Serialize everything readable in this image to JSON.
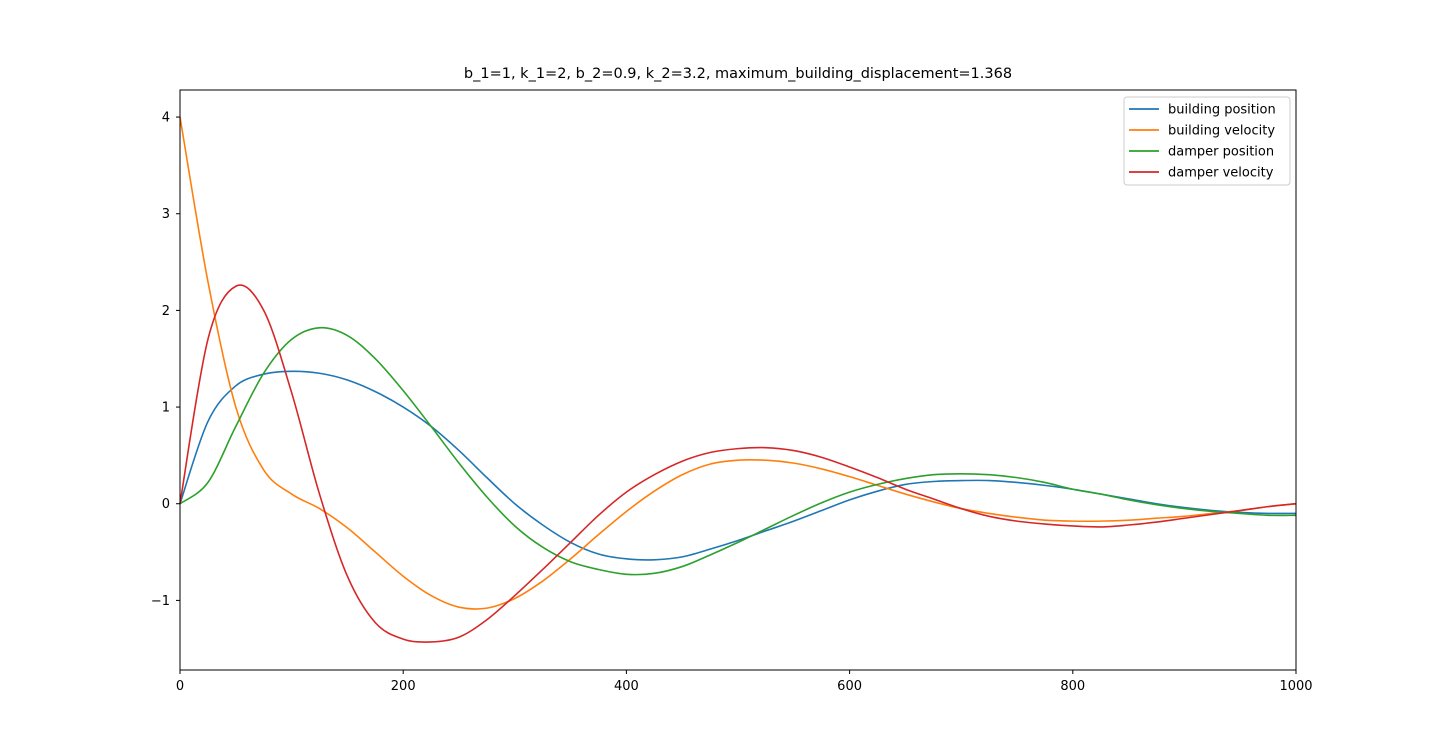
{
  "chart_data": {
    "type": "line",
    "title": "b_1=1, k_1=2, b_2=0.9, k_2=3.2, maximum_building_displacement=1.368",
    "xlabel": "",
    "ylabel": "",
    "xlim": [
      0,
      1000
    ],
    "ylim": [
      -1.72,
      4.28
    ],
    "x_ticks": [
      0,
      200,
      400,
      600,
      800,
      1000
    ],
    "x_tick_labels": [
      "0",
      "200",
      "400",
      "600",
      "800",
      "1000"
    ],
    "y_ticks": [
      -1,
      0,
      1,
      2,
      3,
      4
    ],
    "y_tick_labels": [
      "−1",
      "0",
      "1",
      "2",
      "3",
      "4"
    ],
    "grid": false,
    "legend_position": "top-right",
    "x": [
      0,
      25,
      50,
      75,
      100,
      125,
      150,
      175,
      200,
      225,
      250,
      275,
      300,
      325,
      350,
      375,
      400,
      425,
      450,
      475,
      500,
      525,
      550,
      575,
      600,
      625,
      650,
      675,
      700,
      725,
      750,
      775,
      800,
      825,
      850,
      875,
      900,
      925,
      950,
      975,
      1000
    ],
    "series": [
      {
        "name": "building position",
        "color": "#1f77b4",
        "values": [
          0,
          0.85,
          1.22,
          1.34,
          1.37,
          1.35,
          1.28,
          1.16,
          1.0,
          0.8,
          0.55,
          0.27,
          0.0,
          -0.22,
          -0.4,
          -0.52,
          -0.57,
          -0.58,
          -0.55,
          -0.47,
          -0.38,
          -0.28,
          -0.18,
          -0.07,
          0.04,
          0.13,
          0.2,
          0.23,
          0.24,
          0.24,
          0.22,
          0.19,
          0.15,
          0.1,
          0.05,
          0.0,
          -0.04,
          -0.07,
          -0.09,
          -0.1,
          -0.1
        ]
      },
      {
        "name": "building velocity",
        "color": "#ff7f0e",
        "values": [
          4.0,
          2.3,
          1.0,
          0.35,
          0.1,
          -0.05,
          -0.25,
          -0.5,
          -0.75,
          -0.95,
          -1.07,
          -1.08,
          -0.98,
          -0.8,
          -0.57,
          -0.32,
          -0.08,
          0.13,
          0.3,
          0.41,
          0.45,
          0.45,
          0.42,
          0.36,
          0.28,
          0.19,
          0.1,
          0.02,
          -0.05,
          -0.1,
          -0.14,
          -0.17,
          -0.18,
          -0.18,
          -0.17,
          -0.15,
          -0.13,
          -0.1,
          -0.07,
          -0.03,
          0.0
        ]
      },
      {
        "name": "damper position",
        "color": "#2ca02c",
        "values": [
          0,
          0.22,
          0.8,
          1.35,
          1.7,
          1.82,
          1.74,
          1.5,
          1.17,
          0.8,
          0.42,
          0.07,
          -0.23,
          -0.45,
          -0.6,
          -0.68,
          -0.73,
          -0.72,
          -0.65,
          -0.53,
          -0.4,
          -0.26,
          -0.12,
          0.01,
          0.12,
          0.2,
          0.26,
          0.3,
          0.31,
          0.3,
          0.27,
          0.22,
          0.15,
          0.1,
          0.04,
          -0.01,
          -0.05,
          -0.08,
          -0.1,
          -0.12,
          -0.12
        ]
      },
      {
        "name": "damper velocity",
        "color": "#d62728",
        "values": [
          0,
          1.7,
          2.25,
          2.0,
          1.15,
          0.1,
          -0.75,
          -1.23,
          -1.4,
          -1.43,
          -1.38,
          -1.2,
          -0.95,
          -0.68,
          -0.4,
          -0.12,
          0.12,
          0.3,
          0.44,
          0.53,
          0.57,
          0.58,
          0.55,
          0.48,
          0.38,
          0.27,
          0.15,
          0.05,
          -0.05,
          -0.13,
          -0.18,
          -0.21,
          -0.23,
          -0.24,
          -0.22,
          -0.19,
          -0.15,
          -0.11,
          -0.07,
          -0.03,
          0.0
        ]
      }
    ]
  }
}
